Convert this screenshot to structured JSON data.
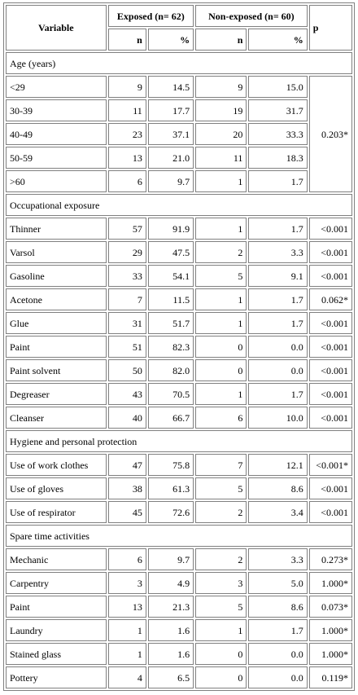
{
  "header": {
    "variable": "Variable",
    "exposed": "Exposed (n= 62)",
    "non_exposed": "Non-exposed (n= 60)",
    "p": "p",
    "n": "n",
    "pct": "%"
  },
  "sections": [
    {
      "title": "Age (years)",
      "merged_p": "0.203*",
      "rows": [
        {
          "label": "<29",
          "en": "9",
          "ep": "14.5",
          "nn": "9",
          "np": "15.0"
        },
        {
          "label": "30-39",
          "en": "11",
          "ep": "17.7",
          "nn": "19",
          "np": "31.7"
        },
        {
          "label": "40-49",
          "en": "23",
          "ep": "37.1",
          "nn": "20",
          "np": "33.3"
        },
        {
          "label": "50-59",
          "en": "13",
          "ep": "21.0",
          "nn": "11",
          "np": "18.3"
        },
        {
          "label": ">60",
          "en": "6",
          "ep": "9.7",
          "nn": "1",
          "np": "1.7"
        }
      ]
    },
    {
      "title": "Occupational exposure",
      "rows": [
        {
          "label": "Thinner",
          "en": "57",
          "ep": "91.9",
          "nn": "1",
          "np": "1.7",
          "p": "<0.001"
        },
        {
          "label": "Varsol",
          "en": "29",
          "ep": "47.5",
          "nn": "2",
          "np": "3.3",
          "p": "<0.001"
        },
        {
          "label": "Gasoline",
          "en": "33",
          "ep": "54.1",
          "nn": "5",
          "np": "9.1",
          "p": "<0.001"
        },
        {
          "label": "Acetone",
          "en": "7",
          "ep": "11.5",
          "nn": "1",
          "np": "1.7",
          "p": "0.062*"
        },
        {
          "label": "Glue",
          "en": "31",
          "ep": "51.7",
          "nn": "1",
          "np": "1.7",
          "p": "<0.001"
        },
        {
          "label": "Paint",
          "en": "51",
          "ep": "82.3",
          "nn": "0",
          "np": "0.0",
          "p": "<0.001"
        },
        {
          "label": "Paint solvent",
          "en": "50",
          "ep": "82.0",
          "nn": "0",
          "np": "0.0",
          "p": "<0.001"
        },
        {
          "label": "Degreaser",
          "en": "43",
          "ep": "70.5",
          "nn": "1",
          "np": "1.7",
          "p": "<0.001"
        },
        {
          "label": "Cleanser",
          "en": "40",
          "ep": "66.7",
          "nn": "6",
          "np": "10.0",
          "p": "<0.001"
        }
      ]
    },
    {
      "title": "Hygiene and personal protection",
      "rows": [
        {
          "label": "Use of work clothes",
          "en": "47",
          "ep": "75.8",
          "nn": "7",
          "np": "12.1",
          "p": "<0.001*"
        },
        {
          "label": "Use of gloves",
          "en": "38",
          "ep": "61.3",
          "nn": "5",
          "np": "8.6",
          "p": "<0.001"
        },
        {
          "label": "Use of respirator",
          "en": "45",
          "ep": "72.6",
          "nn": "2",
          "np": "3.4",
          "p": "<0.001"
        }
      ]
    },
    {
      "title": "Spare time activities",
      "rows": [
        {
          "label": "Mechanic",
          "en": "6",
          "ep": "9.7",
          "nn": "2",
          "np": "3.3",
          "p": "0.273*"
        },
        {
          "label": "Carpentry",
          "en": "3",
          "ep": "4.9",
          "nn": "3",
          "np": "5.0",
          "p": "1.000*"
        },
        {
          "label": "Paint",
          "en": "13",
          "ep": "21.3",
          "nn": "5",
          "np": "8.6",
          "p": "0.073*"
        },
        {
          "label": "Laundry",
          "en": "1",
          "ep": "1.6",
          "nn": "1",
          "np": "1.7",
          "p": "1.000*"
        },
        {
          "label": "Stained glass",
          "en": "1",
          "ep": "1.6",
          "nn": "0",
          "np": "0.0",
          "p": "1.000*"
        },
        {
          "label": "Pottery",
          "en": "4",
          "ep": "6.5",
          "nn": "0",
          "np": "0.0",
          "p": "0.119*"
        }
      ]
    }
  ]
}
